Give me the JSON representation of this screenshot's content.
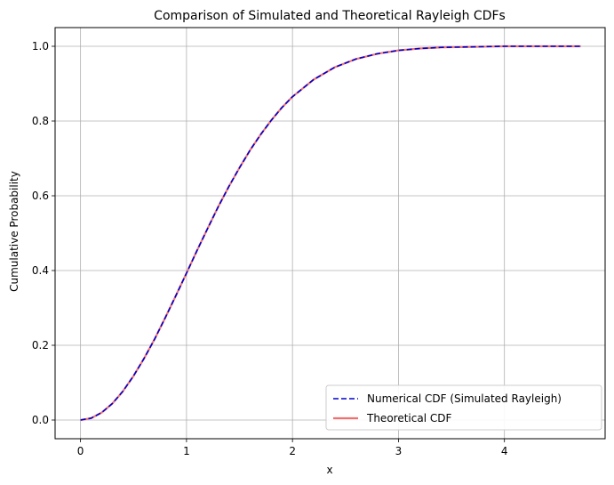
{
  "chart_data": {
    "type": "line",
    "title": "Comparison of Simulated and Theoretical Rayleigh CDFs",
    "xlabel": "x",
    "ylabel": "Cumulative Probability",
    "xlim": [
      -0.24,
      4.95
    ],
    "ylim": [
      -0.05,
      1.05
    ],
    "xticks": [
      0,
      1,
      2,
      3,
      4
    ],
    "yticks": [
      0.0,
      0.2,
      0.4,
      0.6,
      0.8,
      1.0
    ],
    "xtick_labels": [
      "0",
      "1",
      "2",
      "3",
      "4"
    ],
    "ytick_labels": [
      "0.0",
      "0.2",
      "0.4",
      "0.6",
      "0.8",
      "1.0"
    ],
    "grid": true,
    "legend_position": "lower-right",
    "series": [
      {
        "name": "Numerical CDF (Simulated Rayleigh)",
        "color": "#0000cc",
        "style": "dashed",
        "x": [
          0,
          0.1,
          0.2,
          0.3,
          0.4,
          0.5,
          0.6,
          0.7,
          0.8,
          0.9,
          1.0,
          1.1,
          1.2,
          1.3,
          1.4,
          1.5,
          1.6,
          1.7,
          1.8,
          1.9,
          2.0,
          2.2,
          2.4,
          2.6,
          2.8,
          3.0,
          3.2,
          3.4,
          3.6,
          3.8,
          4.0,
          4.2,
          4.4,
          4.72
        ],
        "y": [
          0,
          0.005,
          0.02,
          0.044,
          0.077,
          0.118,
          0.165,
          0.217,
          0.274,
          0.333,
          0.393,
          0.454,
          0.513,
          0.571,
          0.625,
          0.675,
          0.722,
          0.764,
          0.802,
          0.836,
          0.865,
          0.911,
          0.944,
          0.966,
          0.98,
          0.989,
          0.994,
          0.997,
          0.998,
          0.999,
          1.0,
          1.0,
          1.0,
          1.0
        ]
      },
      {
        "name": "Theoretical CDF",
        "color": "#f07070",
        "style": "solid",
        "x": [
          0,
          0.1,
          0.2,
          0.3,
          0.4,
          0.5,
          0.6,
          0.7,
          0.8,
          0.9,
          1.0,
          1.1,
          1.2,
          1.3,
          1.4,
          1.5,
          1.6,
          1.7,
          1.8,
          1.9,
          2.0,
          2.2,
          2.4,
          2.6,
          2.8,
          3.0,
          3.2,
          3.4,
          3.6,
          3.8,
          4.0,
          4.2,
          4.4,
          4.72
        ],
        "y": [
          0,
          0.005,
          0.02,
          0.044,
          0.077,
          0.118,
          0.165,
          0.217,
          0.274,
          0.333,
          0.393,
          0.454,
          0.513,
          0.571,
          0.625,
          0.675,
          0.722,
          0.764,
          0.802,
          0.836,
          0.865,
          0.911,
          0.944,
          0.966,
          0.98,
          0.989,
          0.994,
          0.997,
          0.998,
          0.999,
          1.0,
          1.0,
          1.0,
          1.0
        ]
      }
    ]
  }
}
